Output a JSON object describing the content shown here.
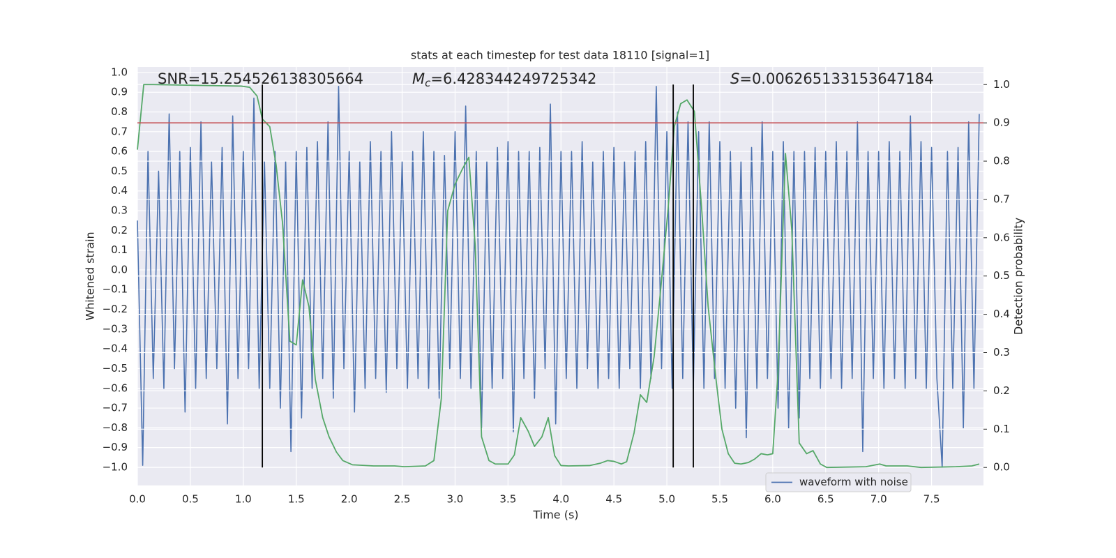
{
  "chart_data": {
    "type": "line",
    "title": "stats at each timestep for test data 18110 [signal=1]",
    "xlabel": "Time (s)",
    "ylabel": "Whitened strain",
    "y2label": "Detection probability",
    "annotations": [
      {
        "text": "SNR=15.254526138305664"
      },
      {
        "symbol": "M",
        "subscript": "c",
        "text": "=6.428344249725342"
      },
      {
        "symbol": "S",
        "text": "=0.006265133153647184"
      }
    ],
    "background": "#eaeaf2",
    "grid": true,
    "legend": "lower right",
    "xlim": [
      0,
      7.99
    ],
    "xticks": [
      {
        "value": 0,
        "label": "0.0"
      },
      0.5,
      {
        "value": 1,
        "label": "1.0"
      },
      1.5,
      {
        "value": 2,
        "label": "2.0"
      },
      2.5,
      {
        "value": 3,
        "label": "3.0"
      },
      3.5,
      {
        "value": 4,
        "label": "4.0"
      },
      4.5,
      {
        "value": 5,
        "label": "5.0"
      },
      5.5,
      {
        "value": 6,
        "label": "6.0"
      },
      6.5,
      {
        "value": 7,
        "label": "7.0"
      },
      7.5
    ],
    "ylim": [
      -1.092,
      1.028
    ],
    "yticks": [
      {
        "value": -1,
        "label": "−1.0"
      },
      {
        "value": -0.9,
        "label": "−0.9"
      },
      {
        "value": -0.8,
        "label": "−0.8"
      },
      {
        "value": -0.7,
        "label": "−0.7"
      },
      {
        "value": -0.6,
        "label": "−0.6"
      },
      {
        "value": -0.5,
        "label": "−0.5"
      },
      {
        "value": -0.4,
        "label": "−0.4"
      },
      {
        "value": -0.3,
        "label": "−0.3"
      },
      {
        "value": -0.2,
        "label": "−0.2"
      },
      {
        "value": -0.1,
        "label": "−0.1"
      },
      {
        "value": 0,
        "label": "0.0"
      },
      0.1,
      0.2,
      0.3,
      0.4,
      0.5,
      0.6,
      0.7,
      0.8,
      0.9,
      {
        "value": 1,
        "label": "1.0"
      }
    ],
    "y2lim": [
      -0.047,
      1.046
    ],
    "y2ticks": [
      {
        "value": 0,
        "label": "0.0"
      },
      0.1,
      0.2,
      0.3,
      0.4,
      0.5,
      0.6,
      0.7,
      0.8,
      0.9,
      {
        "value": 1,
        "label": "1.0"
      }
    ],
    "series": [
      {
        "name": "waveform with noise",
        "color": "#4c72b0",
        "x": [
          0.0,
          0.05,
          0.1,
          0.15,
          0.2,
          0.25,
          0.3,
          0.35,
          0.4,
          0.45,
          0.5,
          0.55,
          0.6,
          0.65,
          0.7,
          0.75,
          0.8,
          0.85,
          0.9,
          0.95,
          1.0,
          1.05,
          1.1,
          1.15,
          1.2,
          1.25,
          1.3,
          1.35,
          1.4,
          1.45,
          1.5,
          1.55,
          1.6,
          1.65,
          1.7,
          1.75,
          1.8,
          1.85,
          1.9,
          1.95,
          2.0,
          2.05,
          2.1,
          2.15,
          2.2,
          2.25,
          2.3,
          2.35,
          2.4,
          2.45,
          2.5,
          2.55,
          2.6,
          2.65,
          2.7,
          2.75,
          2.8,
          2.85,
          2.9,
          2.95,
          3.0,
          3.05,
          3.1,
          3.15,
          3.2,
          3.25,
          3.3,
          3.35,
          3.4,
          3.45,
          3.5,
          3.55,
          3.6,
          3.65,
          3.7,
          3.75,
          3.8,
          3.85,
          3.9,
          3.95,
          4.0,
          4.05,
          4.1,
          4.15,
          4.2,
          4.25,
          4.3,
          4.35,
          4.4,
          4.45,
          4.5,
          4.55,
          4.6,
          4.65,
          4.7,
          4.75,
          4.8,
          4.85,
          4.9,
          4.95,
          5.0,
          5.05,
          5.1,
          5.15,
          5.2,
          5.25,
          5.3,
          5.35,
          5.4,
          5.45,
          5.5,
          5.55,
          5.6,
          5.65,
          5.7,
          5.75,
          5.8,
          5.85,
          5.9,
          5.95,
          6.0,
          6.05,
          6.1,
          6.15,
          6.2,
          6.25,
          6.3,
          6.35,
          6.4,
          6.45,
          6.5,
          6.55,
          6.6,
          6.65,
          6.7,
          6.75,
          6.8,
          6.85,
          6.9,
          6.95,
          7.0,
          7.05,
          7.1,
          7.15,
          7.2,
          7.25,
          7.3,
          7.35,
          7.4,
          7.45,
          7.5,
          7.55,
          7.6,
          7.65,
          7.7,
          7.75,
          7.8,
          7.85,
          7.9,
          7.95
        ],
        "values": [
          0.25,
          -0.99,
          0.6,
          -0.55,
          0.5,
          -0.6,
          0.79,
          -0.5,
          0.6,
          -0.72,
          0.62,
          -0.6,
          0.75,
          -0.55,
          0.55,
          -0.5,
          0.62,
          -0.78,
          0.78,
          -0.55,
          0.6,
          -0.5,
          0.87,
          -0.6,
          0.55,
          -0.6,
          0.6,
          -0.7,
          0.55,
          -0.92,
          0.6,
          -0.75,
          0.62,
          -0.6,
          0.65,
          -0.55,
          0.75,
          -0.65,
          0.93,
          -0.5,
          0.6,
          -0.72,
          0.55,
          -0.6,
          0.65,
          -0.55,
          0.6,
          -0.62,
          0.7,
          -0.5,
          0.55,
          -0.6,
          0.6,
          -0.55,
          0.7,
          -0.6,
          0.6,
          -0.65,
          0.58,
          -0.5,
          0.7,
          -0.55,
          0.83,
          -0.6,
          0.6,
          -0.8,
          0.55,
          -0.6,
          0.62,
          -0.55,
          0.65,
          -0.82,
          0.6,
          -0.55,
          0.6,
          -0.65,
          0.62,
          -0.5,
          0.84,
          -0.78,
          0.6,
          -0.55,
          0.6,
          -0.6,
          0.65,
          -0.5,
          0.55,
          -0.6,
          0.6,
          -0.55,
          0.62,
          -0.6,
          0.55,
          -0.5,
          0.6,
          -0.6,
          0.65,
          -0.55,
          0.93,
          -0.5,
          0.7,
          -0.6,
          0.8,
          -0.55,
          0.75,
          -0.6,
          0.7,
          -0.6,
          0.75,
          -0.55,
          0.65,
          -0.6,
          0.6,
          -0.7,
          0.55,
          -0.85,
          0.62,
          -0.6,
          0.75,
          -0.55,
          0.6,
          -0.7,
          0.65,
          -0.8,
          0.6,
          -0.75,
          0.6,
          -0.55,
          0.62,
          -0.6,
          0.6,
          -0.55,
          0.65,
          -0.6,
          0.6,
          -0.55,
          0.75,
          -0.92,
          0.6,
          -0.55,
          0.6,
          -0.6,
          0.65,
          -0.55,
          0.6,
          -0.6,
          0.78,
          -0.55,
          0.65,
          -0.6,
          0.62,
          -0.55,
          -1.0,
          0.6,
          -0.6,
          0.62,
          -0.8,
          0.75,
          -0.6,
          0.79
        ]
      },
      {
        "color": "#55a868",
        "axis": "y2",
        "x": [
          0,
          0.06,
          0.15,
          0.98,
          1.06,
          1.13,
          1.18,
          1.25,
          1.31,
          1.37,
          1.44,
          1.5,
          1.56,
          1.62,
          1.68,
          1.75,
          1.81,
          1.88,
          1.94,
          2.03,
          2.23,
          2.43,
          2.52,
          2.72,
          2.8,
          2.87,
          2.93,
          3,
          3.07,
          3.13,
          3.19,
          3.25,
          3.32,
          3.38,
          3.5,
          3.56,
          3.62,
          3.69,
          3.75,
          3.82,
          3.88,
          3.94,
          4,
          4.07,
          4.27,
          4.37,
          4.44,
          4.5,
          4.57,
          4.62,
          4.69,
          4.75,
          4.81,
          4.88,
          4.94,
          5.01,
          5.07,
          5.13,
          5.19,
          5.26,
          5.33,
          5.39,
          5.46,
          5.52,
          5.58,
          5.64,
          5.7,
          5.77,
          5.83,
          5.89,
          5.95,
          6,
          6.05,
          6.12,
          6.18,
          6.25,
          6.32,
          6.38,
          6.45,
          6.51,
          6.88,
          7.01,
          7.07,
          7.27,
          7.4,
          7.73,
          7.88,
          7.95
        ],
        "values": [
          0.83,
          1,
          1,
          0.996,
          0.993,
          0.97,
          0.91,
          0.89,
          0.79,
          0.64,
          0.33,
          0.32,
          0.49,
          0.42,
          0.23,
          0.13,
          0.08,
          0.04,
          0.018,
          0.007,
          0.004,
          0.004,
          0.002,
          0.004,
          0.018,
          0.18,
          0.67,
          0.74,
          0.78,
          0.81,
          0.58,
          0.08,
          0.018,
          0.009,
          0.009,
          0.033,
          0.13,
          0.095,
          0.055,
          0.08,
          0.13,
          0.031,
          0.005,
          0.004,
          0.005,
          0.011,
          0.018,
          0.016,
          0.009,
          0.015,
          0.09,
          0.19,
          0.17,
          0.29,
          0.46,
          0.67,
          0.89,
          0.95,
          0.96,
          0.93,
          0.67,
          0.42,
          0.24,
          0.1,
          0.036,
          0.011,
          0.009,
          0.013,
          0.022,
          0.036,
          0.033,
          0.036,
          0.25,
          0.82,
          0.62,
          0.064,
          0.036,
          0.044,
          0.009,
          0,
          0.002,
          0.009,
          0.004,
          0.004,
          0,
          0.002,
          0.004,
          0.009
        ]
      }
    ],
    "hline": {
      "y2": 0.9,
      "color": "#c44e52"
    },
    "vlines": {
      "x": [
        1.18,
        5.06,
        5.25
      ],
      "y2_range": [
        0,
        1
      ],
      "color": "#000000"
    }
  }
}
